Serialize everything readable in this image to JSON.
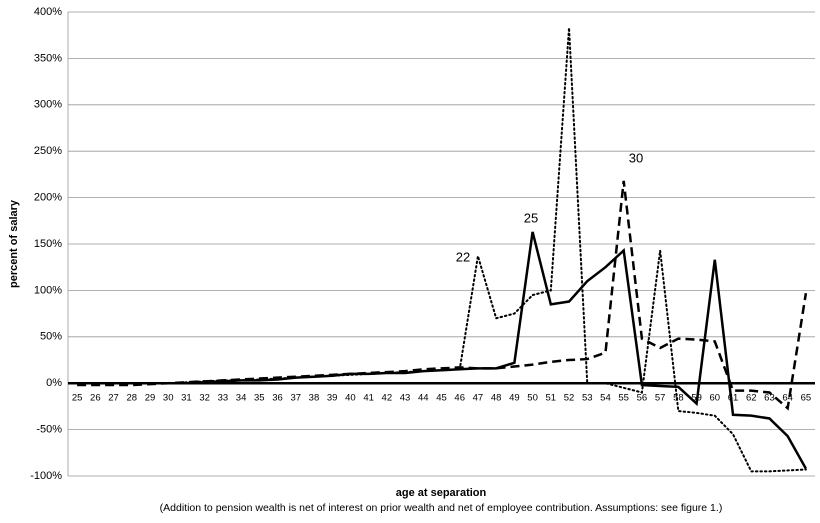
{
  "chart_data": {
    "type": "line",
    "y_label": "percent of salary",
    "x_label": "age at separation",
    "note": "(Addition to pension wealth is net of interest on prior wealth and net of employee contribution.  Assumptions:  see figure 1.)",
    "categories": [
      25,
      26,
      27,
      28,
      29,
      30,
      31,
      32,
      33,
      34,
      35,
      36,
      37,
      38,
      39,
      40,
      41,
      42,
      43,
      44,
      45,
      46,
      47,
      48,
      49,
      50,
      51,
      52,
      53,
      54,
      55,
      56,
      57,
      58,
      59,
      60,
      61,
      62,
      63,
      64,
      65
    ],
    "series": [
      {
        "name": "22",
        "color": "#000000",
        "style": "dotted",
        "values": [
          0,
          0,
          0,
          0,
          0,
          0,
          1,
          2,
          3,
          3,
          4,
          5,
          6,
          7,
          8,
          9,
          10,
          11,
          12,
          13,
          14,
          15,
          137,
          70,
          75,
          95,
          100,
          383,
          0,
          0,
          -5,
          -10,
          143,
          -30,
          -32,
          -35,
          -55,
          -95,
          -95,
          -94,
          -93
        ]
      },
      {
        "name": "25",
        "color": "#000000",
        "style": "solid",
        "values": [
          0,
          0,
          0,
          0,
          0,
          0,
          0,
          1,
          2,
          3,
          3,
          4,
          6,
          7,
          8,
          10,
          10,
          11,
          11,
          13,
          14,
          15,
          16,
          16,
          22,
          163,
          85,
          88,
          110,
          125,
          143,
          -2,
          -3,
          -4,
          -22,
          133,
          -34,
          -35,
          -38,
          -57,
          -92
        ]
      },
      {
        "name": "30",
        "color": "#000000",
        "style": "dashed",
        "values": [
          -2,
          -2,
          -2,
          -2,
          -1,
          0,
          1,
          2,
          3,
          4,
          5,
          6,
          7,
          8,
          9,
          10,
          11,
          12,
          13,
          15,
          16,
          17,
          16,
          16,
          18,
          20,
          23,
          25,
          26,
          33,
          218,
          48,
          38,
          48,
          47,
          45,
          -8,
          -8,
          -10,
          -27,
          97
        ]
      }
    ],
    "ylim": [
      -100,
      400
    ],
    "yticks": [
      {
        "value": -100,
        "label": "-100%"
      },
      {
        "value": -50,
        "label": "-50%"
      },
      {
        "value": 0,
        "label": "0%"
      },
      {
        "value": 50,
        "label": "50%"
      },
      {
        "value": 100,
        "label": "100%"
      },
      {
        "value": 150,
        "label": "150%"
      },
      {
        "value": 200,
        "label": "200%"
      },
      {
        "value": 250,
        "label": "250%"
      },
      {
        "value": 300,
        "label": "300%"
      },
      {
        "value": 350,
        "label": "350%"
      },
      {
        "value": 400,
        "label": "400%"
      }
    ],
    "grid": true
  }
}
